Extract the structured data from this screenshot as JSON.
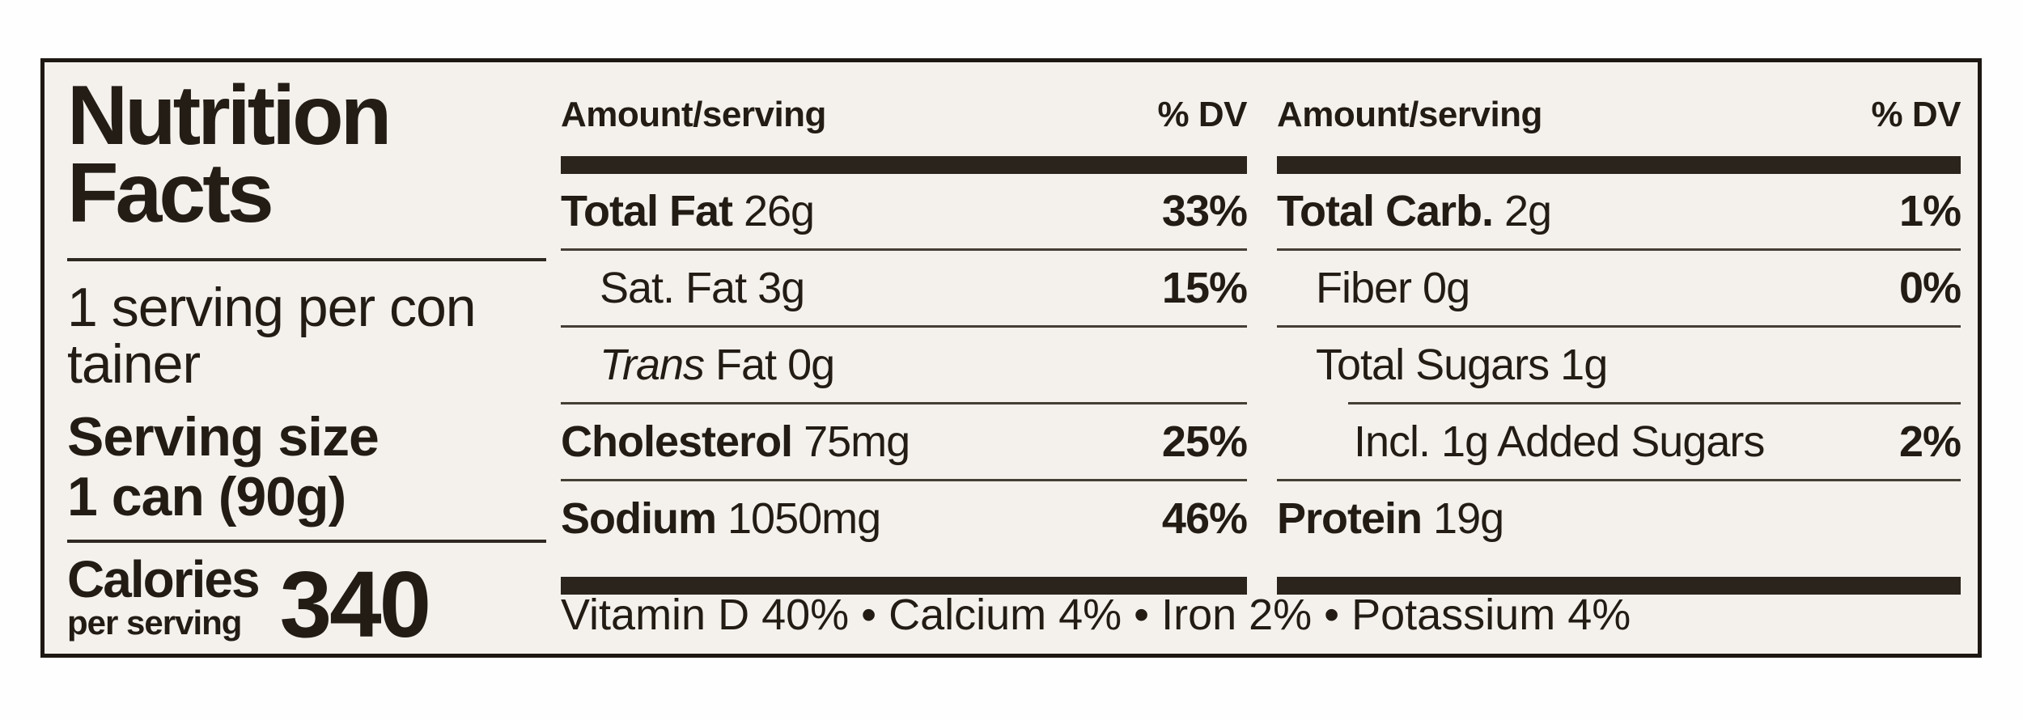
{
  "colors": {
    "page_bg": "#fefefe",
    "label_bg": "#f4f1ec",
    "ink": "#221c15",
    "thick_bar": "#2b241c",
    "thin_rule": "#453e35",
    "border": "#1e1812"
  },
  "label": {
    "title_line1": "Nutrition",
    "title_line2": "Facts",
    "servings_line1": "1 serving per con",
    "servings_line2": "tainer",
    "serving_size_label": "Serving size",
    "serving_size_value": "1 can (90g)",
    "calories_label": "Calories",
    "calories_sublabel": "per serving",
    "calories_value": "340",
    "header_amount": "Amount/serving",
    "header_dv": "% DV",
    "footer": "Vitamin D 40% • Calcium 4% • Iron 2% • Potassium 4%",
    "columns": [
      {
        "rows": [
          {
            "name": "Total Fat",
            "amount": "26g",
            "dv": "33%",
            "emphasis": "bold",
            "indent": 0
          },
          {
            "name": "Sat. Fat",
            "amount": "3g",
            "dv": "15%",
            "emphasis": "normal",
            "indent": 1
          },
          {
            "name_italic": "Trans",
            "name": "Fat",
            "amount": "0g",
            "dv": "",
            "emphasis": "normal",
            "indent": 1
          },
          {
            "name": "Cholesterol",
            "amount": "75mg",
            "dv": "25%",
            "emphasis": "bold",
            "indent": 0
          },
          {
            "name": "Sodium",
            "amount": "1050mg",
            "dv": "46%",
            "emphasis": "bold",
            "indent": 0
          }
        ]
      },
      {
        "rows": [
          {
            "name": "Total Carb.",
            "amount": "2g",
            "dv": "1%",
            "emphasis": "bold",
            "indent": 0
          },
          {
            "name": "Fiber",
            "amount": "0g",
            "dv": "0%",
            "emphasis": "normal",
            "indent": 1
          },
          {
            "name": "Total Sugars",
            "amount": "1g",
            "dv": "",
            "emphasis": "normal",
            "indent": 1,
            "rule_after_indented": true
          },
          {
            "name": "Incl. 1g Added Sugars",
            "amount": "",
            "dv": "2%",
            "emphasis": "normal",
            "indent": 2
          },
          {
            "name": "Protein",
            "amount": "19g",
            "dv": "",
            "emphasis": "bold",
            "indent": 0
          }
        ]
      }
    ]
  }
}
